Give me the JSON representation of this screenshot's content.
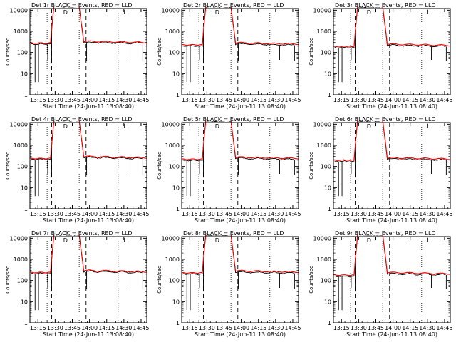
{
  "chart_data": {
    "type": "line",
    "shared": {
      "xlabel": "Start Time (24-Jun-11 13:08:40)",
      "ylabel": "Counts/sec",
      "xlim_minutes_from_1315": [
        -7,
        95
      ],
      "x_ticks": [
        {
          "label": "13:15",
          "minute": 0
        },
        {
          "label": "13:30",
          "minute": 15
        },
        {
          "label": "13:45",
          "minute": 30
        },
        {
          "label": "14:00",
          "minute": 45
        },
        {
          "label": "14:15",
          "minute": 60
        },
        {
          "label": "14:30",
          "minute": 75
        },
        {
          "label": "14:45",
          "minute": 90
        }
      ],
      "y_scale": "log",
      "ylim": [
        1,
        12000
      ],
      "y_ticks": [
        {
          "label": "1",
          "value": 1
        },
        {
          "label": "10",
          "value": 10
        },
        {
          "label": "100",
          "value": 100
        },
        {
          "label": "1000",
          "value": 1000
        },
        {
          "label": "10000",
          "value": 10000
        }
      ],
      "dotted_vlines_minutes": [
        8,
        36,
        70
      ],
      "dashed_vlines_minutes": [
        12,
        42
      ],
      "markers": [
        {
          "label": "D",
          "minute": 24
        },
        {
          "label": "L",
          "minute": 76
        }
      ],
      "series_names": [
        "Events",
        "LLD"
      ],
      "series_colors": {
        "Events": "#000000",
        "LLD": "#ff0000"
      }
    },
    "panels": [
      {
        "title": "Det 1r BLACK = Events, RED = LLD",
        "baseline": 280,
        "post": 340,
        "events_factor": 0.9
      },
      {
        "title": "Det 2r BLACK = Events, RED = LLD",
        "baseline": 230,
        "post": 290,
        "events_factor": 0.88
      },
      {
        "title": "Det 3r BLACK = Events, RED = LLD",
        "baseline": 190,
        "post": 250,
        "events_factor": 0.88
      },
      {
        "title": "Det 4r BLACK = Events, RED = LLD",
        "baseline": 240,
        "post": 300,
        "events_factor": 0.9
      },
      {
        "title": "Det 5r BLACK = Events, RED = LLD",
        "baseline": 220,
        "post": 280,
        "events_factor": 0.88
      },
      {
        "title": "Det 6r BLACK = Events, RED = LLD",
        "baseline": 200,
        "post": 260,
        "events_factor": 0.88
      },
      {
        "title": "Det 7r BLACK = Events, RED = LLD",
        "baseline": 240,
        "post": 300,
        "events_factor": 0.9
      },
      {
        "title": "Det 8r BLACK = Events, RED = LLD",
        "baseline": 230,
        "post": 290,
        "events_factor": 0.88
      },
      {
        "title": "Det 9r BLACK = Events, RED = LLD",
        "baseline": 180,
        "post": 240,
        "events_factor": 0.88
      }
    ]
  }
}
